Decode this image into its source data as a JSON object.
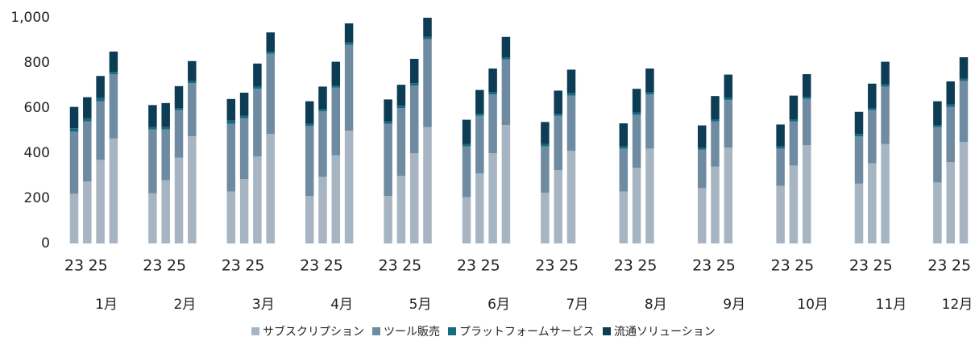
{
  "chart_data": {
    "type": "stacked_bar",
    "groups": [
      "1月",
      "2月",
      "3月",
      "4月",
      "5月",
      "6月",
      "7月",
      "8月",
      "9月",
      "10月",
      "11月",
      "12月"
    ],
    "categories": [
      "23",
      null,
      "25",
      null,
      "23",
      null,
      "25",
      null,
      "23",
      null,
      "25",
      null,
      "23",
      null,
      "25",
      null,
      "23",
      null,
      "25",
      null,
      "23",
      null,
      "25",
      null,
      "23",
      null,
      "25",
      null,
      "23",
      null,
      "25",
      null,
      "23",
      null,
      "25",
      null,
      "23",
      null,
      "25",
      null,
      "23",
      null,
      "25",
      null,
      "23",
      null,
      "25",
      null
    ],
    "series": [
      {
        "name": "サブスクリプション",
        "color": "#a7b5c3",
        "values": [
          220,
          275,
          370,
          465,
          222,
          280,
          380,
          475,
          230,
          285,
          385,
          485,
          210,
          295,
          390,
          500,
          210,
          300,
          400,
          515,
          205,
          310,
          400,
          525,
          225,
          325,
          410,
          null,
          230,
          335,
          420,
          null,
          245,
          340,
          425,
          null,
          255,
          345,
          435,
          null,
          265,
          355,
          440,
          null,
          270,
          360,
          450,
          null
        ]
      },
      {
        "name": "ツール販売",
        "color": "#6e8ba2",
        "values": [
          275,
          265,
          260,
          285,
          283,
          225,
          210,
          235,
          300,
          270,
          300,
          355,
          310,
          290,
          300,
          380,
          320,
          300,
          300,
          390,
          225,
          255,
          260,
          290,
          205,
          240,
          245,
          null,
          190,
          235,
          240,
          null,
          170,
          200,
          210,
          null,
          165,
          195,
          205,
          null,
          210,
          235,
          255,
          null,
          245,
          245,
          270,
          null
        ]
      },
      {
        "name": "プラットフォームサービス",
        "color": "#176a82",
        "values": [
          15,
          15,
          15,
          10,
          10,
          10,
          10,
          10,
          15,
          10,
          10,
          10,
          10,
          10,
          10,
          10,
          10,
          10,
          10,
          10,
          10,
          10,
          10,
          10,
          10,
          10,
          10,
          null,
          10,
          10,
          10,
          null,
          10,
          10,
          10,
          null,
          10,
          10,
          10,
          null,
          10,
          10,
          10,
          null,
          10,
          10,
          10,
          null
        ]
      },
      {
        "name": "流通ソリューション",
        "color": "#0d3c55",
        "values": [
          95,
          93,
          97,
          90,
          98,
          107,
          97,
          88,
          95,
          103,
          102,
          85,
          100,
          100,
          105,
          85,
          98,
          93,
          108,
          85,
          108,
          105,
          105,
          90,
          98,
          102,
          105,
          null,
          102,
          105,
          105,
          null,
          98,
          103,
          103,
          null,
          97,
          105,
          100,
          null,
          98,
          108,
          100,
          null,
          105,
          103,
          95,
          null
        ]
      }
    ],
    "ylim": [
      0,
      1000
    ],
    "yticks": [
      0,
      200,
      400,
      600,
      800,
      {
        "value": 1000,
        "label": "1,000"
      }
    ]
  }
}
